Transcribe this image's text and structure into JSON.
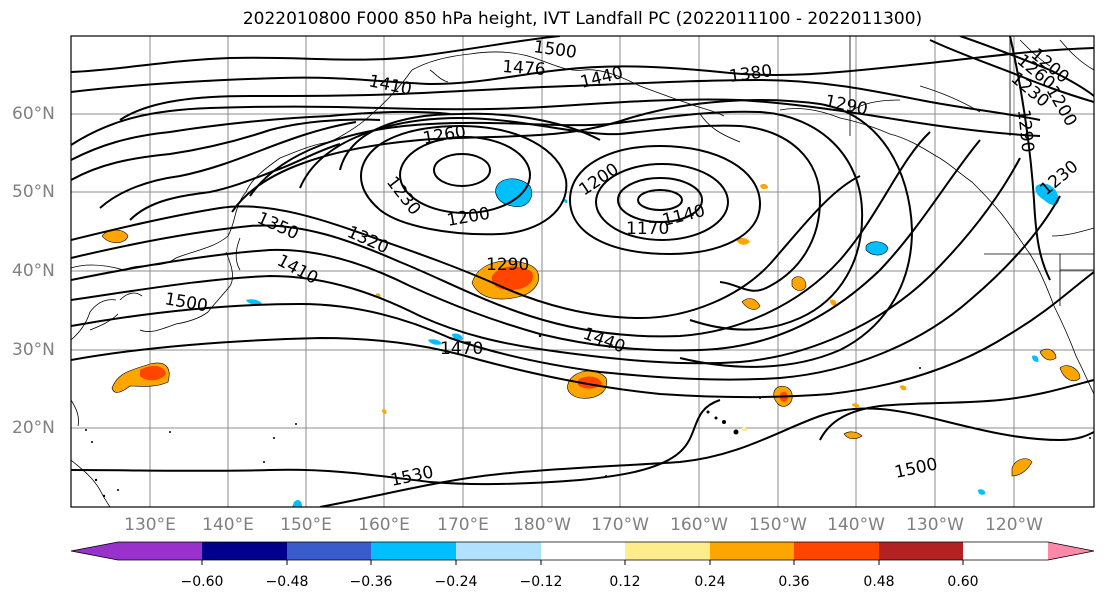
{
  "title": "2022010800 F000 850 hPa height, IVT Landfall PC (2022011100 - 2022011300)",
  "map": {
    "lat_labels": [
      "60°N",
      "50°N",
      "40°N",
      "30°N",
      "20°N"
    ],
    "lon_labels": [
      "130°E",
      "140°E",
      "150°E",
      "160°E",
      "170°E",
      "180°W",
      "170°W",
      "160°W",
      "150°W",
      "140°W",
      "130°W",
      "120°W"
    ],
    "contour_labels": [
      "1500",
      "1476",
      "1440",
      "1380",
      "1410",
      "1290",
      "1200",
      "1230",
      "1260",
      "1260",
      "1230",
      "1200",
      "1200",
      "1140",
      "1170",
      "1350",
      "1320",
      "1410",
      "1290",
      "1500",
      "1440",
      "1470",
      "1530",
      "1500",
      "1290",
      "1230",
      "1200"
    ]
  },
  "colorbar": {
    "ticks": [
      "−0.60",
      "−0.48",
      "−0.36",
      "−0.24",
      "−0.12",
      "0.12",
      "0.24",
      "0.36",
      "0.48",
      "0.60"
    ],
    "colors": [
      "#9932cc",
      "#00008b",
      "#3a5bcc",
      "#00bfff",
      "#b0e2ff",
      "#ffffff",
      "#ffec8b",
      "#ffa500",
      "#ff4500",
      "#b22222",
      "#ff88aa"
    ]
  }
}
